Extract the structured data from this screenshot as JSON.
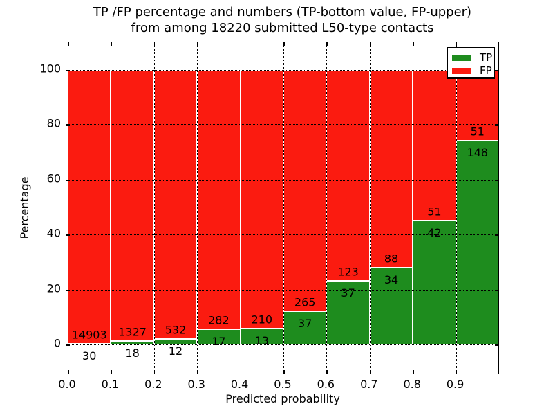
{
  "title": {
    "line1": "TP /FP percentage and numbers (TP-bottom value, FP-upper)",
    "line2": "from among 18220 submitted L50-type contacts"
  },
  "axes": {
    "xlabel": "Predicted probability",
    "ylabel": "Percentage",
    "x_tick_labels": [
      "0.0",
      "0.1",
      "0.2",
      "0.3",
      "0.4",
      "0.5",
      "0.6",
      "0.7",
      "0.8",
      "0.9"
    ],
    "y_tick_labels": [
      "0",
      "20",
      "40",
      "60",
      "80",
      "100"
    ]
  },
  "legend": {
    "items": [
      {
        "label": "TP",
        "color": "#1e8c1e"
      },
      {
        "label": "FP",
        "color": "#fb1b10"
      }
    ]
  },
  "chart_data": {
    "type": "bar",
    "variant": "stacked-percentage-histogram",
    "title": "TP /FP percentage and numbers (TP-bottom value, FP-upper) from among 18220 submitted L50-type contacts",
    "xlabel": "Predicted probability",
    "ylabel": "Percentage",
    "total_contacts": 18220,
    "bins": [
      "0.0-0.1",
      "0.1-0.2",
      "0.2-0.3",
      "0.3-0.4",
      "0.4-0.5",
      "0.5-0.6",
      "0.6-0.7",
      "0.7-0.8",
      "0.8-0.9",
      "0.9-1.0"
    ],
    "bin_starts": [
      0.0,
      0.1,
      0.2,
      0.3,
      0.4,
      0.5,
      0.6,
      0.7,
      0.8,
      0.9
    ],
    "bin_width": 0.1,
    "series": [
      {
        "name": "TP",
        "color": "#1e8c1e",
        "counts": [
          30,
          18,
          12,
          17,
          13,
          37,
          37,
          34,
          42,
          148
        ]
      },
      {
        "name": "FP",
        "color": "#fb1b10",
        "counts": [
          14903,
          1327,
          532,
          282,
          210,
          265,
          123,
          88,
          51,
          51
        ]
      }
    ],
    "bars_normalized_to": 100,
    "x_ticks": [
      0.0,
      0.1,
      0.2,
      0.3,
      0.4,
      0.5,
      0.6,
      0.7,
      0.8,
      0.9
    ],
    "y_ticks": [
      0,
      20,
      40,
      60,
      80,
      100
    ],
    "xlim": [
      0.0,
      1.0
    ],
    "ylim": [
      -11,
      110
    ],
    "grid": "dotted",
    "legend_position": "upper right",
    "bar_edge_color": "#ffffff"
  }
}
